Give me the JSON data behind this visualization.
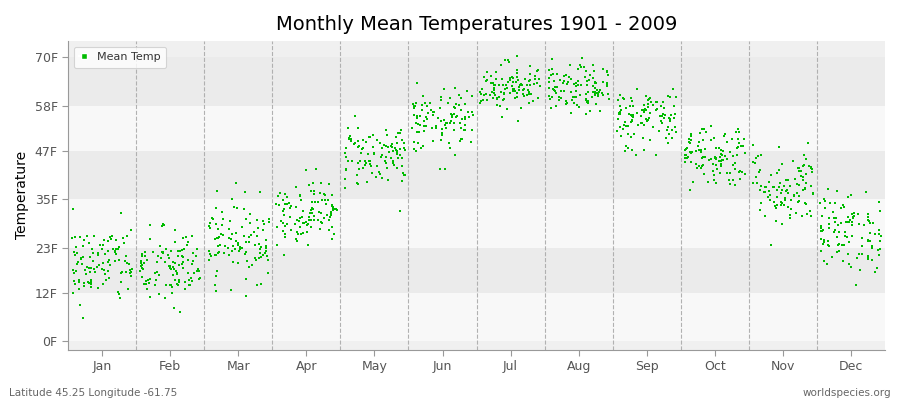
{
  "title": "Monthly Mean Temperatures 1901 - 2009",
  "ylabel": "Temperature",
  "background_color": "#ffffff",
  "plot_bg_color": "#f0f0f0",
  "band_colors": [
    "#f8f8f8",
    "#ebebeb"
  ],
  "dot_color": "#00bb00",
  "dot_size": 3,
  "months": [
    "Jan",
    "Feb",
    "Mar",
    "Apr",
    "May",
    "Jun",
    "Jul",
    "Aug",
    "Sep",
    "Oct",
    "Nov",
    "Dec"
  ],
  "ytick_labels": [
    "0F",
    "12F",
    "23F",
    "35F",
    "47F",
    "58F",
    "70F"
  ],
  "ytick_values": [
    0,
    12,
    23,
    35,
    47,
    58,
    70
  ],
  "ylim": [
    -2,
    74
  ],
  "xlim": [
    0,
    12
  ],
  "footnote_left": "Latitude 45.25 Longitude -61.75",
  "footnote_right": "worldspecies.org",
  "legend_label": "Mean Temp",
  "month_means": [
    19,
    18,
    25,
    32,
    46,
    54,
    63,
    62,
    55,
    46,
    38,
    27
  ],
  "month_stds": [
    5,
    5,
    5,
    4,
    4,
    4,
    3,
    3,
    4,
    4,
    5,
    5
  ],
  "n_years": 109,
  "title_fontsize": 14,
  "tick_fontsize": 9,
  "ylabel_fontsize": 10
}
